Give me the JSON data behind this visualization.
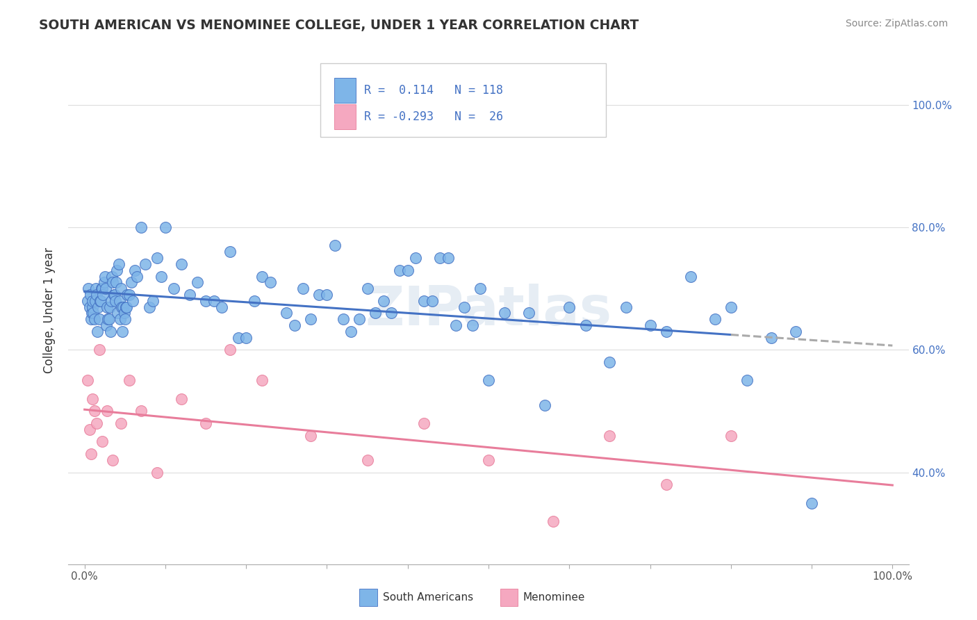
{
  "title": "SOUTH AMERICAN VS MENOMINEE COLLEGE, UNDER 1 YEAR CORRELATION CHART",
  "source": "Source: ZipAtlas.com",
  "ylabel": "College, Under 1 year",
  "legend_labels": [
    "South Americans",
    "Menominee"
  ],
  "r_blue": 0.114,
  "n_blue": 118,
  "r_pink": -0.293,
  "n_pink": 26,
  "blue_color": "#7EB5E8",
  "pink_color": "#F5A8C0",
  "blue_edge_color": "#4472C4",
  "pink_edge_color": "#E87D9B",
  "blue_line_color": "#4472C4",
  "pink_line_color": "#E87D9B",
  "watermark": "ZIPatlas",
  "blue_scatter_x": [
    0.4,
    0.5,
    0.6,
    0.7,
    0.8,
    0.9,
    1.0,
    1.0,
    1.1,
    1.2,
    1.3,
    1.4,
    1.5,
    1.6,
    1.7,
    1.8,
    1.9,
    2.0,
    2.1,
    2.2,
    2.3,
    2.4,
    2.5,
    2.6,
    2.7,
    2.8,
    2.9,
    3.0,
    3.1,
    3.2,
    3.3,
    3.4,
    3.5,
    3.6,
    3.7,
    3.8,
    3.9,
    4.0,
    4.1,
    4.2,
    4.3,
    4.4,
    4.5,
    4.6,
    4.7,
    4.8,
    4.9,
    5.0,
    5.1,
    5.2,
    5.3,
    5.5,
    5.8,
    6.0,
    6.2,
    6.5,
    7.0,
    7.5,
    8.0,
    8.5,
    9.0,
    9.5,
    10.0,
    11.0,
    12.0,
    13.0,
    14.0,
    15.0,
    16.0,
    17.0,
    18.0,
    19.0,
    20.0,
    21.0,
    22.0,
    23.0,
    25.0,
    26.0,
    27.0,
    28.0,
    29.0,
    30.0,
    31.0,
    32.0,
    33.0,
    34.0,
    35.0,
    36.0,
    37.0,
    38.0,
    39.0,
    40.0,
    41.0,
    42.0,
    43.0,
    44.0,
    45.0,
    46.0,
    47.0,
    48.0,
    49.0,
    50.0,
    52.0,
    55.0,
    57.0,
    60.0,
    62.0,
    65.0,
    67.0,
    70.0,
    72.0,
    75.0,
    78.0,
    80.0,
    82.0,
    85.0,
    88.0,
    90.0
  ],
  "blue_scatter_y": [
    68,
    70,
    67,
    69,
    65,
    66,
    67,
    68,
    66,
    65,
    68,
    70,
    69,
    63,
    67,
    65,
    68,
    68,
    70,
    70,
    69,
    71,
    72,
    70,
    64,
    67,
    65,
    65,
    67,
    63,
    68,
    72,
    71,
    69,
    69,
    68,
    71,
    73,
    66,
    74,
    68,
    65,
    70,
    67,
    63,
    67,
    66,
    65,
    67,
    67,
    69,
    69,
    71,
    68,
    73,
    72,
    80,
    74,
    67,
    68,
    75,
    72,
    80,
    70,
    74,
    69,
    71,
    68,
    68,
    67,
    76,
    62,
    62,
    68,
    72,
    71,
    66,
    64,
    70,
    65,
    69,
    69,
    77,
    65,
    63,
    65,
    70,
    66,
    68,
    66,
    73,
    73,
    75,
    68,
    68,
    75,
    75,
    64,
    67,
    64,
    70,
    55,
    66,
    66,
    51,
    67,
    64,
    58,
    67,
    64,
    63,
    72,
    65,
    67,
    55,
    62,
    63,
    35
  ],
  "pink_scatter_x": [
    0.4,
    0.6,
    0.8,
    1.0,
    1.2,
    1.5,
    1.8,
    2.2,
    2.8,
    3.5,
    4.5,
    5.5,
    7.0,
    9.0,
    12.0,
    15.0,
    18.0,
    22.0,
    28.0,
    35.0,
    42.0,
    50.0,
    58.0,
    65.0,
    72.0,
    80.0
  ],
  "pink_scatter_y": [
    55,
    47,
    43,
    52,
    50,
    48,
    60,
    45,
    50,
    42,
    48,
    55,
    50,
    40,
    52,
    48,
    60,
    55,
    46,
    42,
    48,
    42,
    32,
    46,
    38,
    46
  ]
}
